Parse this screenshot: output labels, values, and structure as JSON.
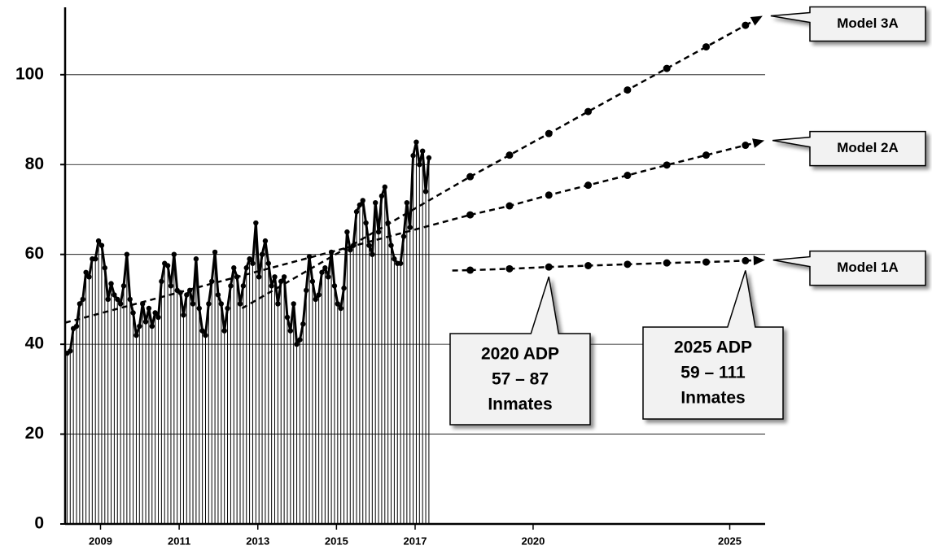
{
  "chart_data": {
    "type": "line",
    "xlim": [
      2008.1,
      2025.9
    ],
    "xticks": [
      2009,
      2011,
      2013,
      2015,
      2017,
      2020,
      2025
    ],
    "ylim": [
      0,
      115
    ],
    "yticks": [
      0,
      20,
      40,
      60,
      80,
      100
    ],
    "grid": true,
    "history": {
      "color": "#000000",
      "x": [
        2008.15,
        2008.23,
        2008.31,
        2008.39,
        2008.47,
        2008.55,
        2008.63,
        2008.71,
        2008.79,
        2008.87,
        2008.95,
        2009.03,
        2009.11,
        2009.19,
        2009.27,
        2009.35,
        2009.43,
        2009.51,
        2009.59,
        2009.67,
        2009.75,
        2009.83,
        2009.91,
        2009.99,
        2010.07,
        2010.15,
        2010.23,
        2010.31,
        2010.39,
        2010.47,
        2010.55,
        2010.63,
        2010.71,
        2010.79,
        2010.87,
        2010.95,
        2011.03,
        2011.11,
        2011.19,
        2011.27,
        2011.35,
        2011.43,
        2011.51,
        2011.59,
        2011.67,
        2011.75,
        2011.83,
        2011.91,
        2011.99,
        2012.07,
        2012.15,
        2012.23,
        2012.31,
        2012.39,
        2012.47,
        2012.55,
        2012.63,
        2012.71,
        2012.79,
        2012.87,
        2012.95,
        2013.03,
        2013.11,
        2013.19,
        2013.27,
        2013.35,
        2013.43,
        2013.51,
        2013.59,
        2013.67,
        2013.75,
        2013.83,
        2013.91,
        2013.99,
        2014.07,
        2014.15,
        2014.23,
        2014.31,
        2014.39,
        2014.47,
        2014.55,
        2014.63,
        2014.71,
        2014.79,
        2014.87,
        2014.95,
        2015.03,
        2015.11,
        2015.19,
        2015.27,
        2015.35,
        2015.43,
        2015.51,
        2015.59,
        2015.67,
        2015.75,
        2015.83,
        2015.91,
        2015.99,
        2016.07,
        2016.15,
        2016.23,
        2016.31,
        2016.39,
        2016.47,
        2016.55,
        2016.63,
        2016.71,
        2016.79,
        2016.87,
        2016.95,
        2017.03,
        2017.11,
        2017.19,
        2017.27,
        2017.35
      ],
      "values": [
        38,
        38.5,
        43.5,
        44,
        49,
        50,
        56,
        55,
        59,
        59,
        63,
        62,
        57,
        50,
        53.5,
        51,
        50,
        49,
        53,
        60,
        50,
        47,
        42,
        44,
        49,
        45,
        48,
        44,
        47,
        46,
        54,
        58,
        57.5,
        53,
        60,
        52,
        51.5,
        46.5,
        51,
        52,
        49,
        59,
        48,
        43,
        42,
        49,
        54,
        60.5,
        51,
        49,
        43,
        48,
        53,
        57,
        55,
        49,
        53,
        57,
        59,
        58,
        67,
        55,
        60,
        63,
        58,
        53,
        55,
        49,
        54,
        55,
        46,
        43,
        49,
        40,
        41,
        44.5,
        52,
        59.5,
        54,
        50,
        51,
        56,
        57,
        55,
        60.5,
        53,
        49,
        48,
        52.5,
        65,
        61,
        62,
        69.5,
        71,
        72,
        67,
        62,
        60,
        71.5,
        65,
        73,
        75,
        67,
        62,
        59,
        58,
        58,
        64,
        71.5,
        66,
        82,
        85,
        80,
        83,
        74,
        81.5
      ]
    },
    "series": [
      {
        "name": "Model 3A",
        "color": "#000000",
        "trend_start": [
          2012.6,
          48
        ],
        "x": [
          2018.4,
          2019.4,
          2020.4,
          2021.4,
          2022.4,
          2023.4,
          2024.4,
          2025.4
        ],
        "values": [
          77.3,
          82.1,
          86.9,
          91.8,
          96.6,
          101.4,
          106.2,
          111
        ]
      },
      {
        "name": "Model 2A",
        "color": "#000000",
        "trend_start": [
          2008.1,
          44.8
        ],
        "x": [
          2018.4,
          2019.4,
          2020.4,
          2021.4,
          2022.4,
          2023.4,
          2024.4,
          2025.4
        ],
        "values": [
          68.8,
          70.8,
          73.2,
          75.4,
          77.6,
          79.9,
          82.1,
          84.3
        ]
      },
      {
        "name": "Model 1A",
        "color": "#000000",
        "x": [
          2018.4,
          2019.4,
          2020.4,
          2021.4,
          2022.4,
          2023.4,
          2024.4,
          2025.4
        ],
        "values": [
          56.5,
          56.8,
          57.2,
          57.5,
          57.8,
          58.1,
          58.3,
          58.6
        ]
      }
    ],
    "annotations": [
      {
        "lines": [
          "2020 ADP",
          "57 – 87",
          "Inmates"
        ]
      },
      {
        "lines": [
          "2025 ADP",
          "59 – 111",
          "Inmates"
        ]
      }
    ]
  }
}
